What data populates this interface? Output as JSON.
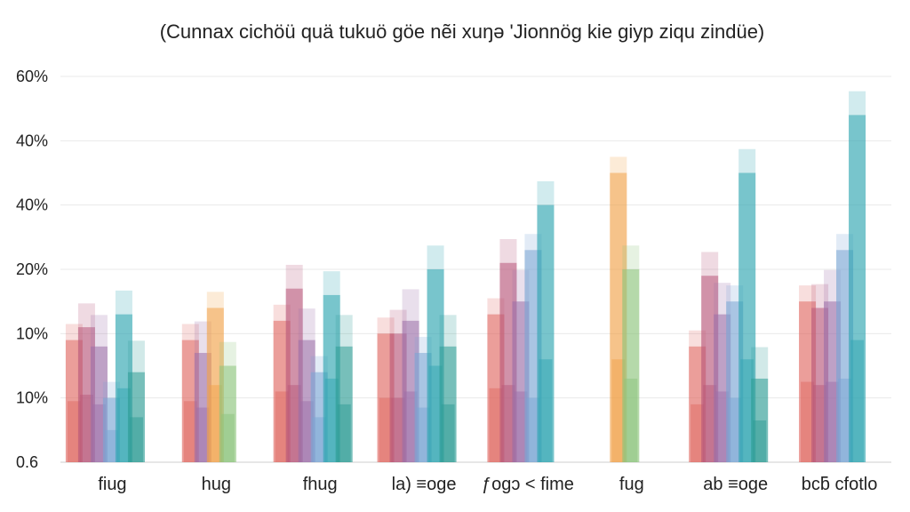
{
  "chart_data": {
    "type": "bar",
    "title": "(Cunnax cichöü quä tukuö göe nẽi xuŋə 'Jionnög kie giyp ziqu zindüe)",
    "xlabel": "",
    "ylabel": "",
    "ytick_labels": [
      "0.6",
      "10%",
      "10%",
      "20%",
      "40%",
      "40%",
      "60%"
    ],
    "ylim": [
      0,
      6
    ],
    "grid": true,
    "categories": [
      "fiug",
      "hug",
      "fhug",
      "la) ≡oge",
      "ƒogɔ < fime",
      "fug",
      "ab ≡oge",
      "bcƃ cfotlo"
    ],
    "colors": [
      "#e06a62",
      "#b8587a",
      "#9b6ea8",
      "#7aa6d4",
      "#2fa6b1",
      "#2d9c94",
      "#f0a24a",
      "#8cc47c"
    ],
    "series": [
      {
        "values": [
          1.9,
          1.9,
          2.2,
          2.0,
          2.3,
          0.0,
          1.8,
          2.5
        ],
        "band": 3.2,
        "seg": 1.5
      },
      {
        "values": [
          2.1,
          0.0,
          2.7,
          2.0,
          3.1,
          0.0,
          2.9,
          2.4
        ],
        "band": 2.6,
        "seg": 1.2
      },
      {
        "values": [
          1.8,
          1.7,
          1.9,
          2.2,
          2.5,
          0.0,
          2.3,
          2.5
        ],
        "band": 2.4,
        "seg": 1.1
      },
      {
        "values": [
          1.0,
          0.0,
          1.4,
          1.7,
          3.3,
          0.0,
          2.5,
          3.3
        ],
        "band": 2.2,
        "seg": 1.0
      },
      {
        "values": [
          2.3,
          0.0,
          2.6,
          3.0,
          4.0,
          0.0,
          4.5,
          5.4
        ],
        "band": 3.3,
        "seg": 1.6
      },
      {
        "values": [
          1.4,
          0.0,
          1.8,
          1.8,
          0.0,
          0.0,
          1.3,
          0.0
        ],
        "band": 2.0,
        "seg": 0.9
      },
      {
        "values": [
          0.0,
          2.4,
          0.0,
          0.0,
          0.0,
          4.5,
          0.0,
          0.0
        ],
        "band": 3.0,
        "seg": 1.3
      },
      {
        "values": [
          0.0,
          1.5,
          0.0,
          0.0,
          0.0,
          3.0,
          0.0,
          0.0
        ],
        "band": 2.2,
        "seg": 1.0
      }
    ]
  }
}
